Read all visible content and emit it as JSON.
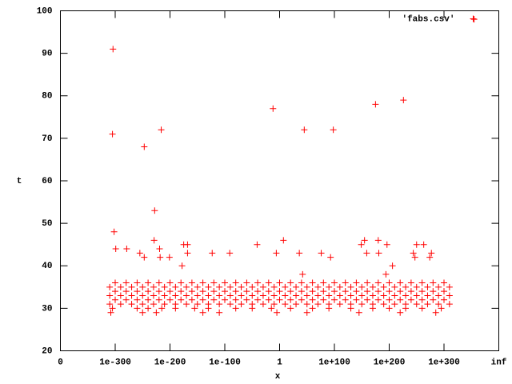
{
  "chart_data": {
    "type": "scatter",
    "xlabel": "x",
    "ylabel": "t",
    "xlim": [
      0,
      8
    ],
    "ylim": [
      20,
      100
    ],
    "xticks": [
      0,
      {
        "value": 1,
        "label": "1e-300"
      },
      {
        "value": 2,
        "label": "1e-200"
      },
      {
        "value": 3,
        "label": "1e-100"
      },
      {
        "value": 4,
        "label": "1"
      },
      {
        "value": 5,
        "label": "1e+100"
      },
      {
        "value": 6,
        "label": "1e+200"
      },
      {
        "value": 7,
        "label": "1e+300"
      },
      {
        "value": 8,
        "label": "inf"
      }
    ],
    "yticks": [
      20,
      30,
      40,
      50,
      60,
      70,
      80,
      90,
      100
    ],
    "legend": "top-right",
    "x": [
      0.96,
      0.95,
      0.98,
      1.01,
      1.21,
      1.53,
      1.72,
      1.84,
      1.71,
      1.81,
      1.82,
      1.99,
      1.45,
      1.53,
      2.22,
      2.25,
      2.32,
      2.32,
      2.77,
      3.09,
      3.59,
      3.88,
      3.94,
      4.07,
      4.36,
      4.45,
      4.42,
      4.76,
      4.93,
      4.98,
      5.49,
      5.55,
      5.59,
      5.75,
      5.8,
      5.81,
      5.96,
      5.94,
      6.06,
      6.26,
      6.44,
      6.47,
      6.5,
      6.63,
      6.74,
      6.77,
      7.55,
      0.9,
      1.1,
      1.3,
      1.5,
      1.7,
      1.9,
      2.1,
      2.3,
      2.5,
      2.7,
      2.9,
      3.1,
      3.3,
      3.5,
      3.7,
      3.9,
      4.1,
      4.3,
      4.5,
      4.7,
      4.9,
      5.1,
      5.3,
      5.5,
      5.7,
      5.9,
      6.1,
      6.3,
      6.5,
      6.7,
      6.9,
      7.1,
      1.0,
      1.2,
      1.4,
      1.6,
      1.8,
      2.0,
      2.2,
      2.4,
      2.6,
      2.8,
      3.0,
      3.2,
      3.4,
      3.6,
      3.8,
      4.0,
      4.2,
      4.4,
      4.6,
      4.8,
      5.0,
      5.2,
      5.4,
      5.6,
      5.8,
      6.0,
      6.2,
      6.4,
      6.6,
      6.8,
      7.0,
      0.9,
      1.1,
      1.3,
      1.5,
      1.7,
      1.9,
      2.1,
      2.3,
      2.5,
      2.7,
      2.9,
      3.1,
      3.3,
      3.5,
      3.7,
      3.9,
      4.1,
      4.3,
      4.5,
      4.7,
      4.9,
      5.1,
      5.3,
      5.5,
      5.7,
      5.9,
      6.1,
      6.3,
      6.5,
      6.7,
      6.9,
      7.1,
      1.0,
      1.2,
      1.4,
      1.6,
      1.8,
      2.0,
      2.2,
      2.4,
      2.6,
      2.8,
      3.0,
      3.2,
      3.4,
      3.6,
      3.8,
      4.0,
      4.2,
      4.4,
      4.6,
      4.8,
      5.0,
      5.2,
      5.4,
      5.6,
      5.8,
      6.0,
      6.2,
      6.4,
      6.6,
      6.8,
      7.0,
      0.9,
      1.1,
      1.3,
      1.5,
      1.7,
      1.9,
      2.1,
      2.3,
      2.5,
      2.7,
      2.9,
      3.1,
      3.3,
      3.5,
      3.7,
      3.9,
      4.1,
      4.3,
      4.5,
      4.7,
      4.9,
      5.1,
      5.3,
      5.5,
      5.7,
      5.9,
      6.1,
      6.3,
      6.5,
      6.7,
      6.9,
      7.1,
      1.0,
      1.2,
      1.4,
      1.6,
      1.8,
      2.0,
      2.2,
      2.4,
      2.6,
      2.8,
      3.0,
      3.2,
      3.4,
      3.6,
      3.8,
      4.0,
      4.2,
      4.4,
      4.6,
      4.8,
      5.0,
      5.2,
      5.4,
      5.6,
      5.8,
      6.0,
      6.2,
      6.4,
      6.6,
      6.8,
      7.0,
      0.95,
      1.4,
      1.6,
      1.85,
      2.1,
      2.45,
      2.7,
      3.2,
      3.5,
      3.85,
      4.2,
      4.6,
      4.9,
      5.3,
      5.7,
      6.0,
      6.3,
      6.6,
      6.95,
      0.92,
      1.5,
      1.75,
      2.6,
      2.9,
      3.95,
      4.5,
      5.45,
      6.2,
      6.85
    ],
    "series": [
      {
        "name": "'fabs.csv'",
        "color": "#ff0000",
        "values": [
          91,
          71,
          48,
          44,
          44,
          68,
          53,
          72,
          46,
          44,
          42,
          42,
          43,
          42,
          40,
          45,
          45,
          43,
          43,
          43,
          45,
          77,
          43,
          46,
          43,
          72,
          38,
          43,
          42,
          72,
          45,
          46,
          43,
          78,
          46,
          43,
          45,
          38,
          40,
          79,
          43,
          42,
          45,
          45,
          42,
          43,
          98,
          31,
          31,
          31,
          31,
          31,
          31,
          31,
          31,
          31,
          31,
          31,
          31,
          31,
          31,
          31,
          31,
          31,
          31,
          31,
          31,
          31,
          31,
          31,
          31,
          31,
          31,
          31,
          31,
          31,
          31,
          31,
          31,
          32,
          32,
          32,
          32,
          32,
          32,
          32,
          32,
          32,
          32,
          32,
          32,
          32,
          32,
          32,
          32,
          32,
          32,
          32,
          32,
          32,
          32,
          32,
          32,
          32,
          32,
          32,
          32,
          32,
          32,
          32,
          33,
          33,
          33,
          33,
          33,
          33,
          33,
          33,
          33,
          33,
          33,
          33,
          33,
          33,
          33,
          33,
          33,
          33,
          33,
          33,
          33,
          33,
          33,
          33,
          33,
          33,
          33,
          33,
          33,
          33,
          33,
          33,
          34,
          34,
          34,
          34,
          34,
          34,
          34,
          34,
          34,
          34,
          34,
          34,
          34,
          34,
          34,
          34,
          34,
          34,
          34,
          34,
          34,
          34,
          34,
          34,
          34,
          34,
          34,
          34,
          34,
          34,
          34,
          35,
          35,
          35,
          35,
          35,
          35,
          35,
          35,
          35,
          35,
          35,
          35,
          35,
          35,
          35,
          35,
          35,
          35,
          35,
          35,
          35,
          35,
          35,
          35,
          35,
          35,
          35,
          35,
          35,
          35,
          35,
          35,
          36,
          36,
          36,
          36,
          36,
          36,
          36,
          36,
          36,
          36,
          36,
          36,
          36,
          36,
          36,
          36,
          36,
          36,
          36,
          36,
          36,
          36,
          36,
          36,
          36,
          36,
          36,
          36,
          36,
          36,
          36,
          30,
          30,
          30,
          30,
          30,
          30,
          30,
          30,
          30,
          30,
          30,
          30,
          30,
          30,
          30,
          30,
          30,
          30,
          30,
          29,
          29,
          29,
          29,
          29,
          29,
          29,
          29,
          29,
          29
        ]
      }
    ]
  }
}
